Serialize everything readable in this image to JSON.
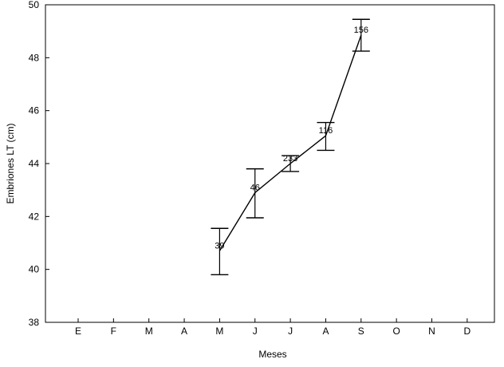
{
  "chart_data": {
    "type": "line",
    "title": "",
    "xlabel": "Meses",
    "ylabel": "Embriones LT (cm)",
    "categories": [
      "E",
      "F",
      "M",
      "A",
      "M",
      "J",
      "J",
      "A",
      "S",
      "O",
      "N",
      "D"
    ],
    "ylim": [
      38,
      50
    ],
    "yticks": [
      38,
      40,
      42,
      44,
      46,
      48,
      50
    ],
    "grid": false,
    "legend": "none",
    "series": [
      {
        "values": [
          null,
          null,
          null,
          null,
          40.7,
          42.9,
          44.0,
          45.05,
          48.85,
          null,
          null,
          null
        ],
        "error_low": [
          null,
          null,
          null,
          null,
          39.8,
          41.95,
          43.7,
          44.5,
          48.25,
          null,
          null,
          null
        ],
        "error_high": [
          null,
          null,
          null,
          null,
          41.55,
          43.8,
          44.3,
          45.55,
          49.45,
          null,
          null,
          null
        ],
        "labels": [
          "",
          "",
          "",
          "",
          "39",
          "46",
          "233",
          "116",
          "156",
          "",
          "",
          ""
        ]
      }
    ]
  }
}
